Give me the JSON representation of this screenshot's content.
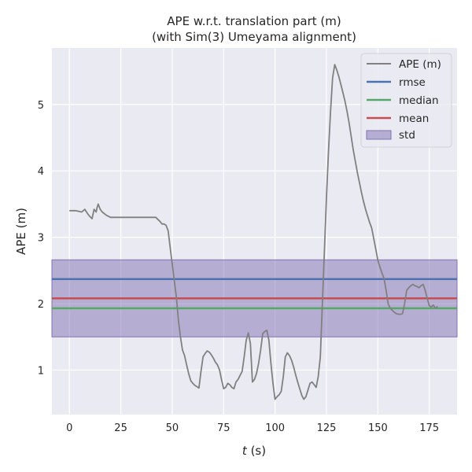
{
  "chart_data": {
    "type": "line",
    "title": "APE w.r.t. translation part (m)",
    "subtitle": "(with Sim(3) Umeyama alignment)",
    "xlabel_var": "t",
    "xlabel_unit": " (s)",
    "ylabel": "APE (m)",
    "xlim": [
      -8.5,
      188.5
    ],
    "ylim": [
      0.33,
      5.85
    ],
    "xticks": [
      0,
      25,
      50,
      75,
      100,
      125,
      150,
      175
    ],
    "yticks": [
      1,
      2,
      3,
      4,
      5
    ],
    "grid": true,
    "legend_position": "upper right",
    "colors": {
      "background": "#eaeaf2",
      "grid": "#ffffff",
      "ape": "#808080",
      "rmse": "#4c72b0",
      "median": "#55a868",
      "mean": "#c44e52",
      "std": "#8172b2"
    },
    "series": [
      {
        "name": "APE (m)",
        "x": [
          0,
          3,
          6,
          7.5,
          9,
          10,
          11,
          12,
          13,
          13.5,
          14,
          15,
          16,
          18,
          20,
          25,
          30,
          35,
          40,
          42,
          44,
          45,
          46,
          47,
          48,
          49,
          50,
          51,
          52,
          53,
          54,
          55,
          56,
          57,
          58,
          59,
          60,
          61,
          62,
          63,
          64,
          65,
          66,
          67,
          68,
          69,
          70,
          71,
          72,
          73,
          74,
          75,
          76,
          77,
          78,
          79,
          80,
          81,
          82,
          83,
          84,
          85,
          86,
          87,
          88,
          89,
          90,
          91,
          92,
          93,
          94,
          95,
          96,
          97,
          98,
          99,
          100,
          101,
          102,
          103,
          104,
          105,
          106,
          107,
          108,
          109,
          110,
          111,
          112,
          113,
          114,
          115,
          116,
          117,
          118,
          119,
          120,
          121,
          122,
          123,
          124,
          125,
          126,
          127,
          128,
          129,
          130,
          131,
          132,
          133,
          134,
          135,
          136,
          137,
          138,
          139,
          140,
          141,
          142,
          143,
          144,
          145,
          146,
          147,
          148,
          149,
          150,
          151,
          152,
          153,
          154,
          155,
          156,
          157,
          158,
          159,
          160,
          161,
          162,
          163,
          164,
          165,
          166,
          167,
          168,
          169,
          170,
          171,
          172,
          173,
          174,
          175,
          176,
          177,
          178,
          179
        ],
        "values": [
          3.4,
          3.4,
          3.38,
          3.42,
          3.35,
          3.31,
          3.28,
          3.42,
          3.38,
          3.45,
          3.5,
          3.42,
          3.38,
          3.33,
          3.3,
          3.3,
          3.3,
          3.3,
          3.3,
          3.3,
          3.24,
          3.2,
          3.2,
          3.18,
          3.1,
          2.85,
          2.6,
          2.35,
          2.1,
          1.75,
          1.5,
          1.3,
          1.22,
          1.08,
          0.95,
          0.84,
          0.8,
          0.77,
          0.75,
          0.73,
          0.98,
          1.2,
          1.25,
          1.29,
          1.27,
          1.23,
          1.18,
          1.12,
          1.08,
          1.0,
          0.85,
          0.72,
          0.74,
          0.8,
          0.78,
          0.74,
          0.72,
          0.82,
          0.86,
          0.92,
          0.98,
          1.2,
          1.45,
          1.56,
          1.4,
          0.82,
          0.86,
          0.95,
          1.1,
          1.3,
          1.55,
          1.58,
          1.6,
          1.45,
          1.1,
          0.8,
          0.56,
          0.6,
          0.63,
          0.68,
          0.9,
          1.2,
          1.26,
          1.22,
          1.15,
          1.05,
          0.93,
          0.82,
          0.72,
          0.62,
          0.56,
          0.6,
          0.7,
          0.8,
          0.82,
          0.78,
          0.74,
          0.9,
          1.2,
          2.0,
          2.8,
          3.6,
          4.3,
          4.9,
          5.4,
          5.6,
          5.52,
          5.42,
          5.3,
          5.18,
          5.05,
          4.9,
          4.72,
          4.52,
          4.32,
          4.15,
          3.98,
          3.83,
          3.68,
          3.54,
          3.42,
          3.32,
          3.22,
          3.14,
          2.98,
          2.82,
          2.65,
          2.55,
          2.46,
          2.38,
          2.2,
          2.0,
          1.93,
          1.9,
          1.87,
          1.85,
          1.84,
          1.84,
          1.85,
          2.0,
          2.2,
          2.24,
          2.27,
          2.29,
          2.27,
          2.26,
          2.24,
          2.27,
          2.29,
          2.2,
          2.08,
          1.97,
          1.95,
          1.98,
          1.93,
          1.96
        ]
      }
    ],
    "hlines": [
      {
        "name": "rmse",
        "value": 2.37
      },
      {
        "name": "median",
        "value": 1.93
      },
      {
        "name": "mean",
        "value": 2.08
      }
    ],
    "band": {
      "name": "std",
      "lower": 1.5,
      "upper": 2.66
    }
  }
}
